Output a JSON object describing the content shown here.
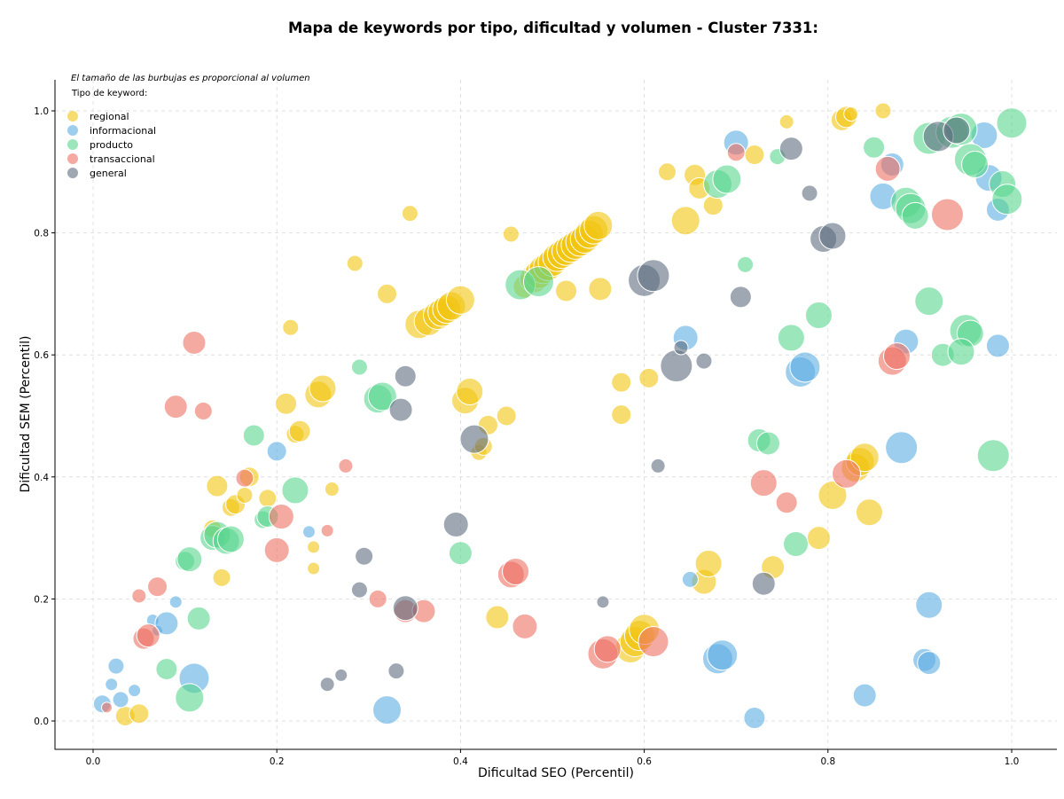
{
  "chart_data": {
    "type": "scatter",
    "title": "Mapa de keywords por tipo, dificultad y volumen - Cluster 7331:",
    "xlabel": "Dificultad SEO (Percentil)",
    "ylabel": "Dificultad SEM (Percentil)",
    "xlim": [
      -0.04,
      1.05
    ],
    "ylim": [
      -0.045,
      1.05
    ],
    "xticks": [
      "0.0",
      "0.2",
      "0.4",
      "0.6",
      "0.8",
      "1.0"
    ],
    "yticks": [
      "0.0",
      "0.2",
      "0.4",
      "0.6",
      "0.8",
      "1.0"
    ],
    "grid": true,
    "size_note": "El tamaño de las burbujas es proporcional al volumen",
    "legend_title": "Tipo de keyword:",
    "legend_position": "top-left",
    "series": [
      {
        "name": "regional",
        "color": "#f1c40f",
        "points": [
          [
            0.035,
            0.008,
            11
          ],
          [
            0.05,
            0.012,
            11
          ],
          [
            0.13,
            0.315,
            10
          ],
          [
            0.135,
            0.385,
            12
          ],
          [
            0.14,
            0.235,
            10
          ],
          [
            0.15,
            0.35,
            10
          ],
          [
            0.155,
            0.355,
            11
          ],
          [
            0.165,
            0.37,
            9
          ],
          [
            0.17,
            0.4,
            11
          ],
          [
            0.19,
            0.365,
            10
          ],
          [
            0.21,
            0.52,
            12
          ],
          [
            0.215,
            0.645,
            9
          ],
          [
            0.22,
            0.47,
            10
          ],
          [
            0.225,
            0.475,
            12
          ],
          [
            0.24,
            0.25,
            7
          ],
          [
            0.24,
            0.285,
            7
          ],
          [
            0.245,
            0.535,
            15
          ],
          [
            0.25,
            0.545,
            15
          ],
          [
            0.26,
            0.38,
            8
          ],
          [
            0.285,
            0.75,
            9
          ],
          [
            0.32,
            0.7,
            11
          ],
          [
            0.345,
            0.832,
            9
          ],
          [
            0.355,
            0.65,
            16
          ],
          [
            0.365,
            0.655,
            16
          ],
          [
            0.375,
            0.665,
            16
          ],
          [
            0.38,
            0.67,
            16
          ],
          [
            0.385,
            0.675,
            16
          ],
          [
            0.39,
            0.68,
            16
          ],
          [
            0.4,
            0.69,
            16
          ],
          [
            0.405,
            0.525,
            15
          ],
          [
            0.41,
            0.54,
            15
          ],
          [
            0.42,
            0.44,
            9
          ],
          [
            0.425,
            0.45,
            10
          ],
          [
            0.43,
            0.485,
            11
          ],
          [
            0.44,
            0.17,
            13
          ],
          [
            0.45,
            0.5,
            11
          ],
          [
            0.455,
            0.798,
            9
          ],
          [
            0.47,
            0.712,
            13
          ],
          [
            0.48,
            0.725,
            16
          ],
          [
            0.485,
            0.732,
            16
          ],
          [
            0.49,
            0.74,
            16
          ],
          [
            0.495,
            0.745,
            16
          ],
          [
            0.5,
            0.752,
            16
          ],
          [
            0.505,
            0.76,
            16
          ],
          [
            0.51,
            0.765,
            16
          ],
          [
            0.515,
            0.77,
            16
          ],
          [
            0.52,
            0.775,
            16
          ],
          [
            0.525,
            0.78,
            16
          ],
          [
            0.53,
            0.785,
            16
          ],
          [
            0.535,
            0.79,
            16
          ],
          [
            0.54,
            0.798,
            16
          ],
          [
            0.545,
            0.805,
            16
          ],
          [
            0.55,
            0.812,
            16
          ],
          [
            0.515,
            0.705,
            12
          ],
          [
            0.552,
            0.708,
            13
          ],
          [
            0.575,
            0.555,
            11
          ],
          [
            0.575,
            0.502,
            11
          ],
          [
            0.585,
            0.12,
            17
          ],
          [
            0.59,
            0.13,
            17
          ],
          [
            0.595,
            0.14,
            17
          ],
          [
            0.6,
            0.15,
            17
          ],
          [
            0.605,
            0.562,
            11
          ],
          [
            0.625,
            0.9,
            10
          ],
          [
            0.645,
            0.82,
            16
          ],
          [
            0.655,
            0.895,
            12
          ],
          [
            0.66,
            0.873,
            12
          ],
          [
            0.665,
            0.228,
            14
          ],
          [
            0.67,
            0.258,
            15
          ],
          [
            0.675,
            0.845,
            11
          ],
          [
            0.72,
            0.928,
            11
          ],
          [
            0.74,
            0.252,
            13
          ],
          [
            0.755,
            0.982,
            8
          ],
          [
            0.79,
            0.3,
            13
          ],
          [
            0.805,
            0.37,
            16
          ],
          [
            0.815,
            0.985,
            12
          ],
          [
            0.82,
            0.99,
            12
          ],
          [
            0.825,
            0.995,
            8
          ],
          [
            0.83,
            0.415,
            16
          ],
          [
            0.835,
            0.425,
            16
          ],
          [
            0.84,
            0.432,
            16
          ],
          [
            0.845,
            0.342,
            15
          ],
          [
            0.86,
            1.0,
            9
          ]
        ]
      },
      {
        "name": "informacional",
        "color": "#5dade2",
        "points": [
          [
            0.01,
            0.028,
            10
          ],
          [
            0.02,
            0.06,
            7
          ],
          [
            0.025,
            0.09,
            9
          ],
          [
            0.03,
            0.035,
            9
          ],
          [
            0.045,
            0.05,
            7
          ],
          [
            0.065,
            0.165,
            7
          ],
          [
            0.07,
            0.148,
            6
          ],
          [
            0.08,
            0.16,
            13
          ],
          [
            0.09,
            0.195,
            7
          ],
          [
            0.11,
            0.07,
            17
          ],
          [
            0.2,
            0.442,
            11
          ],
          [
            0.235,
            0.31,
            7
          ],
          [
            0.32,
            0.018,
            16
          ],
          [
            0.65,
            0.232,
            9
          ],
          [
            0.645,
            0.628,
            14
          ],
          [
            0.68,
            0.102,
            17
          ],
          [
            0.685,
            0.108,
            17
          ],
          [
            0.7,
            0.948,
            14
          ],
          [
            0.72,
            0.005,
            12
          ],
          [
            0.77,
            0.572,
            17
          ],
          [
            0.775,
            0.58,
            17
          ],
          [
            0.84,
            0.042,
            13
          ],
          [
            0.86,
            0.86,
            15
          ],
          [
            0.87,
            0.912,
            13
          ],
          [
            0.88,
            0.448,
            18
          ],
          [
            0.885,
            0.622,
            14
          ],
          [
            0.905,
            0.1,
            13
          ],
          [
            0.91,
            0.19,
            15
          ],
          [
            0.91,
            0.095,
            13
          ],
          [
            0.97,
            0.96,
            15
          ],
          [
            0.975,
            0.89,
            15
          ],
          [
            0.985,
            0.838,
            13
          ],
          [
            0.985,
            0.615,
            13
          ]
        ]
      },
      {
        "name": "producto",
        "color": "#58d68d",
        "points": [
          [
            0.08,
            0.085,
            12
          ],
          [
            0.1,
            0.262,
            11
          ],
          [
            0.105,
            0.265,
            14
          ],
          [
            0.105,
            0.038,
            16
          ],
          [
            0.115,
            0.168,
            13
          ],
          [
            0.13,
            0.3,
            14
          ],
          [
            0.135,
            0.305,
            15
          ],
          [
            0.145,
            0.295,
            15
          ],
          [
            0.15,
            0.298,
            15
          ],
          [
            0.175,
            0.468,
            12
          ],
          [
            0.185,
            0.33,
            10
          ],
          [
            0.19,
            0.335,
            12
          ],
          [
            0.22,
            0.378,
            15
          ],
          [
            0.29,
            0.58,
            9
          ],
          [
            0.31,
            0.528,
            16
          ],
          [
            0.315,
            0.532,
            16
          ],
          [
            0.4,
            0.275,
            13
          ],
          [
            0.465,
            0.715,
            17
          ],
          [
            0.485,
            0.72,
            17
          ],
          [
            0.68,
            0.88,
            16
          ],
          [
            0.69,
            0.888,
            16
          ],
          [
            0.71,
            0.748,
            9
          ],
          [
            0.725,
            0.46,
            13
          ],
          [
            0.735,
            0.455,
            13
          ],
          [
            0.745,
            0.925,
            9
          ],
          [
            0.76,
            0.628,
            15
          ],
          [
            0.765,
            0.29,
            14
          ],
          [
            0.79,
            0.665,
            15
          ],
          [
            0.85,
            0.94,
            12
          ],
          [
            0.885,
            0.85,
            17
          ],
          [
            0.89,
            0.84,
            17
          ],
          [
            0.895,
            0.828,
            15
          ],
          [
            0.91,
            0.688,
            16
          ],
          [
            0.91,
            0.955,
            18
          ],
          [
            0.925,
            0.6,
            13
          ],
          [
            0.935,
            0.965,
            18
          ],
          [
            0.945,
            0.97,
            18
          ],
          [
            0.95,
            0.64,
            18
          ],
          [
            0.955,
            0.635,
            15
          ],
          [
            0.955,
            0.92,
            18
          ],
          [
            0.96,
            0.912,
            15
          ],
          [
            0.945,
            0.605,
            15
          ],
          [
            0.98,
            0.435,
            18
          ],
          [
            0.99,
            0.88,
            15
          ],
          [
            0.995,
            0.855,
            17
          ],
          [
            1.0,
            0.98,
            17
          ]
        ]
      },
      {
        "name": "transaccional",
        "color": "#ec7063",
        "points": [
          [
            0.015,
            0.022,
            6
          ],
          [
            0.05,
            0.205,
            8
          ],
          [
            0.055,
            0.135,
            12
          ],
          [
            0.06,
            0.14,
            13
          ],
          [
            0.07,
            0.22,
            11
          ],
          [
            0.09,
            0.515,
            13
          ],
          [
            0.11,
            0.62,
            13
          ],
          [
            0.12,
            0.508,
            10
          ],
          [
            0.165,
            0.398,
            10
          ],
          [
            0.2,
            0.28,
            14
          ],
          [
            0.205,
            0.335,
            14
          ],
          [
            0.255,
            0.312,
            7
          ],
          [
            0.275,
            0.418,
            8
          ],
          [
            0.31,
            0.2,
            10
          ],
          [
            0.34,
            0.18,
            13
          ],
          [
            0.36,
            0.18,
            13
          ],
          [
            0.455,
            0.24,
            15
          ],
          [
            0.46,
            0.245,
            15
          ],
          [
            0.47,
            0.155,
            14
          ],
          [
            0.555,
            0.11,
            17
          ],
          [
            0.56,
            0.118,
            15
          ],
          [
            0.61,
            0.13,
            17
          ],
          [
            0.7,
            0.932,
            10
          ],
          [
            0.73,
            0.39,
            15
          ],
          [
            0.755,
            0.358,
            12
          ],
          [
            0.82,
            0.405,
            16
          ],
          [
            0.865,
            0.905,
            14
          ],
          [
            0.87,
            0.59,
            16
          ],
          [
            0.875,
            0.598,
            15
          ],
          [
            0.93,
            0.83,
            18
          ]
        ]
      },
      {
        "name": "general",
        "color": "#5d6d7e",
        "points": [
          [
            0.255,
            0.06,
            8
          ],
          [
            0.27,
            0.075,
            7
          ],
          [
            0.29,
            0.215,
            9
          ],
          [
            0.295,
            0.27,
            10
          ],
          [
            0.33,
            0.082,
            9
          ],
          [
            0.335,
            0.51,
            13
          ],
          [
            0.34,
            0.185,
            14
          ],
          [
            0.34,
            0.565,
            12
          ],
          [
            0.395,
            0.322,
            14
          ],
          [
            0.415,
            0.462,
            16
          ],
          [
            0.555,
            0.195,
            7
          ],
          [
            0.6,
            0.722,
            18
          ],
          [
            0.61,
            0.73,
            18
          ],
          [
            0.615,
            0.418,
            8
          ],
          [
            0.635,
            0.582,
            18
          ],
          [
            0.64,
            0.612,
            8
          ],
          [
            0.665,
            0.59,
            9
          ],
          [
            0.705,
            0.695,
            12
          ],
          [
            0.73,
            0.225,
            13
          ],
          [
            0.76,
            0.938,
            13
          ],
          [
            0.78,
            0.865,
            9
          ],
          [
            0.795,
            0.79,
            15
          ],
          [
            0.805,
            0.795,
            15
          ],
          [
            0.92,
            0.958,
            17
          ],
          [
            0.94,
            0.968,
            15
          ]
        ]
      }
    ]
  }
}
